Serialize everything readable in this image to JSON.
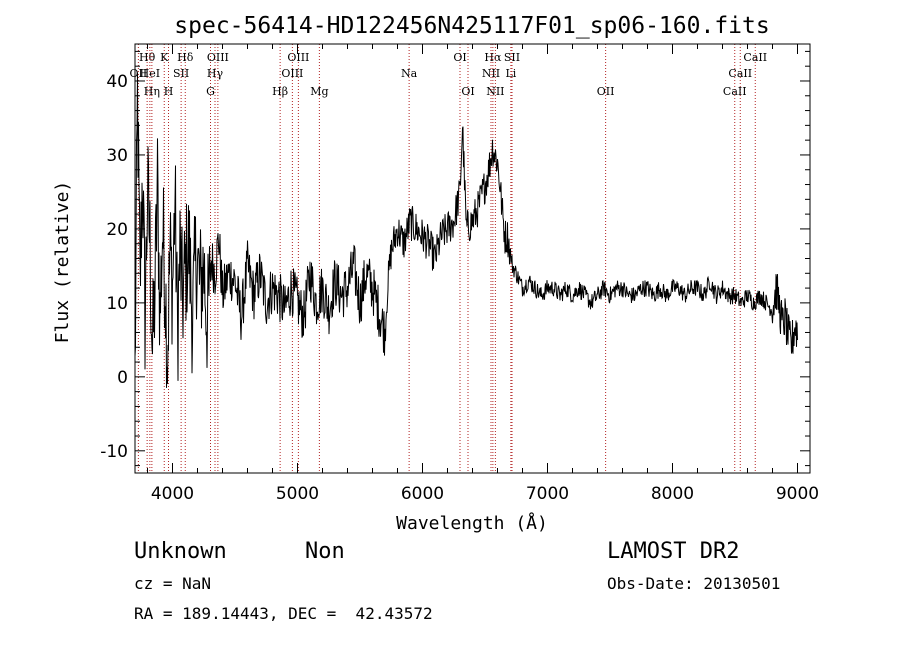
{
  "chart_data": {
    "type": "line",
    "title": "spec-56414-HD122456N425117F01_sp06-160.fits",
    "xlabel": "Wavelength (Å)",
    "ylabel": "Flux (relative)",
    "xlim": [
      3700,
      9100
    ],
    "ylim": [
      -13,
      45
    ],
    "xticks": [
      4000,
      5000,
      6000,
      7000,
      8000,
      9000
    ],
    "yticks": [
      -10,
      0,
      10,
      20,
      30,
      40
    ],
    "grid": false,
    "colors": {
      "spectrum": "#000000",
      "lines": "#b22222",
      "text": "#000000"
    },
    "line_markers": [
      {
        "label": "OII",
        "wave": 3727,
        "row": 2
      },
      {
        "label": "Hθ",
        "wave": 3797,
        "row": 1
      },
      {
        "label": "HeI",
        "wave": 3819,
        "row": 2
      },
      {
        "label": "Hη",
        "wave": 3835,
        "row": 3
      },
      {
        "label": "K",
        "wave": 3934,
        "row": 1
      },
      {
        "label": "H",
        "wave": 3968,
        "row": 3
      },
      {
        "label": "SII",
        "wave": 4069,
        "row": 2
      },
      {
        "label": "Hδ",
        "wave": 4102,
        "row": 1
      },
      {
        "label": "OIII",
        "wave": 4363,
        "row": 1
      },
      {
        "label": "Hγ",
        "wave": 4340,
        "row": 2
      },
      {
        "label": "G",
        "wave": 4304,
        "row": 3
      },
      {
        "label": "Hβ",
        "wave": 4861,
        "row": 3
      },
      {
        "label": "OIII",
        "wave": 5007,
        "row": 1
      },
      {
        "label": "OIII",
        "wave": 4959,
        "row": 2
      },
      {
        "label": "Mg",
        "wave": 5175,
        "row": 3
      },
      {
        "label": "Na",
        "wave": 5893,
        "row": 2
      },
      {
        "label": "OI",
        "wave": 6300,
        "row": 1
      },
      {
        "label": "OI",
        "wave": 6364,
        "row": 3
      },
      {
        "label": "Hα",
        "wave": 6563,
        "row": 1
      },
      {
        "label": "NII",
        "wave": 6548,
        "row": 2
      },
      {
        "label": "NII",
        "wave": 6583,
        "row": 3
      },
      {
        "label": "SII",
        "wave": 6716,
        "row": 1
      },
      {
        "label": "Li",
        "wave": 6707,
        "row": 2
      },
      {
        "label": "OII",
        "wave": 7465,
        "row": 3
      },
      {
        "label": "CaII",
        "wave": 8662,
        "row": 1
      },
      {
        "label": "CaII",
        "wave": 8542,
        "row": 2
      },
      {
        "label": "CaII",
        "wave": 8498,
        "row": 3
      }
    ],
    "series": [
      {
        "x": [
          3700,
          3720,
          3740,
          3760,
          3780,
          3800,
          3820,
          3840,
          3860,
          3880,
          3900,
          3920,
          3940,
          3960,
          3980,
          4000,
          4020,
          4040,
          4060,
          4080,
          4100,
          4130,
          4160,
          4190,
          4220,
          4250,
          4280,
          4310,
          4340,
          4370,
          4400,
          4450,
          4500,
          4550,
          4600,
          4650,
          4700,
          4750,
          4800,
          4850,
          4900,
          4950,
          5000,
          5050,
          5100,
          5150,
          5200,
          5250,
          5300,
          5350,
          5400,
          5450,
          5500,
          5550,
          5600,
          5650,
          5700,
          5720,
          5750,
          5800,
          5850,
          5900,
          5950,
          6000,
          6050,
          6100,
          6150,
          6200,
          6250,
          6300,
          6320,
          6350,
          6400,
          6450,
          6500,
          6530,
          6560,
          6580,
          6600,
          6620,
          6640,
          6660,
          6680,
          6700,
          6720,
          6750,
          6800,
          6850,
          6900,
          6950,
          7000,
          7050,
          7100,
          7150,
          7200,
          7250,
          7300,
          7350,
          7400,
          7450,
          7500,
          7550,
          7600,
          7650,
          7700,
          7750,
          7800,
          7850,
          7900,
          7950,
          8000,
          8050,
          8100,
          8150,
          8200,
          8250,
          8300,
          8350,
          8400,
          8450,
          8500,
          8550,
          8600,
          8650,
          8700,
          8750,
          8800,
          8830,
          8860,
          8880,
          8900,
          8920,
          8950,
          8980,
          9000
        ],
        "y": [
          0,
          38,
          12,
          28,
          8,
          25,
          18,
          3,
          12,
          26,
          8,
          20,
          14,
          3,
          17,
          12,
          24,
          6,
          17,
          10,
          14,
          18,
          8,
          17,
          12,
          15,
          7,
          16,
          14,
          19,
          11,
          14,
          13,
          8,
          15,
          11,
          14,
          10,
          12,
          11,
          9,
          12,
          10,
          8,
          14,
          10,
          12,
          9,
          13,
          11,
          12,
          15,
          10,
          14,
          12,
          9,
          6,
          12,
          17,
          20,
          18,
          21,
          20,
          19,
          18,
          16,
          19,
          20,
          21,
          25,
          34,
          20,
          21,
          23,
          26,
          28,
          31,
          30,
          29,
          26,
          22,
          19,
          19,
          17,
          15,
          14,
          12,
          13,
          12,
          11,
          12,
          12,
          11,
          12,
          11,
          12,
          11,
          10,
          11,
          12,
          11,
          12,
          12,
          11,
          11,
          12,
          12,
          11,
          12,
          11,
          12,
          12,
          11,
          12,
          12,
          11,
          13,
          11,
          12,
          11,
          11,
          10,
          11,
          10,
          11,
          10,
          9,
          12,
          9,
          7,
          8,
          6,
          4,
          7,
          6
        ]
      }
    ]
  },
  "info": {
    "class_text": "Unknown",
    "subclass_text": "Non",
    "survey_text": "LAMOST DR2",
    "cz_text": "cz = NaN",
    "obsdate_text": "Obs-Date: 20130501",
    "coords_text": "RA = 189.14443, DEC =  42.43572"
  }
}
